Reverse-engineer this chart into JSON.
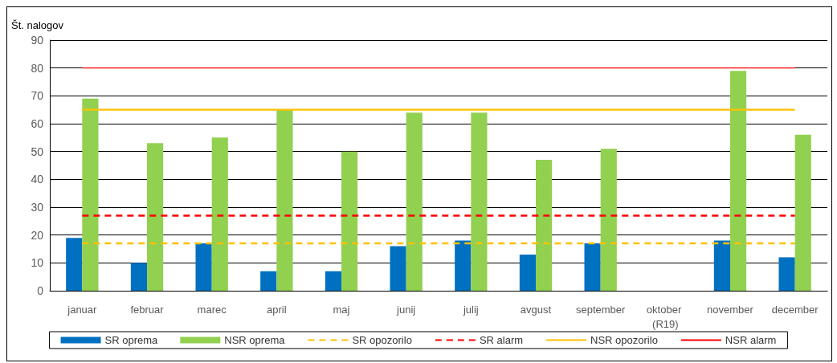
{
  "chart_data": {
    "type": "bar",
    "ylabel": "Št. nalogov",
    "categories": [
      "januar",
      "februar",
      "marec",
      "april",
      "maj",
      "junij",
      "julij",
      "avgust",
      "september",
      "oktober (R19)",
      "november",
      "december"
    ],
    "series": [
      {
        "name": "SR oprema",
        "color": "#0070c0",
        "values": [
          19,
          10,
          17,
          7,
          7,
          16,
          18,
          13,
          17,
          null,
          18,
          12
        ]
      },
      {
        "name": "NSR oprema",
        "color": "#92d050",
        "values": [
          69,
          53,
          55,
          65,
          50,
          64,
          64,
          47,
          51,
          null,
          79,
          56
        ]
      },
      {
        "name": "SR opozorilo",
        "type": "line",
        "color": "#ffc000",
        "line_style": "dashed",
        "values": [
          17,
          17,
          17,
          17,
          17,
          17,
          17,
          17,
          17,
          17,
          17,
          17
        ]
      },
      {
        "name": "SR alarm",
        "type": "line",
        "color": "#ff0000",
        "line_style": "dashed",
        "values": [
          27,
          27,
          27,
          27,
          27,
          27,
          27,
          27,
          27,
          27,
          27,
          27
        ]
      },
      {
        "name": "NSR opozorilo",
        "type": "line",
        "color": "#ffc000",
        "line_style": "solid",
        "values": [
          65,
          65,
          65,
          65,
          65,
          65,
          65,
          65,
          65,
          65,
          65,
          65
        ]
      },
      {
        "name": "NSR alarm",
        "type": "line",
        "color": "#ff0000",
        "line_style": "solid",
        "values": [
          80,
          80,
          80,
          80,
          80,
          80,
          80,
          80,
          80,
          80,
          80,
          80
        ]
      }
    ],
    "ylim": [
      0,
      90
    ],
    "yticks": [
      0,
      10,
      20,
      30,
      40,
      50,
      60,
      70,
      80,
      90
    ],
    "grid": "y",
    "legend": "bottom",
    "marker": "none"
  }
}
